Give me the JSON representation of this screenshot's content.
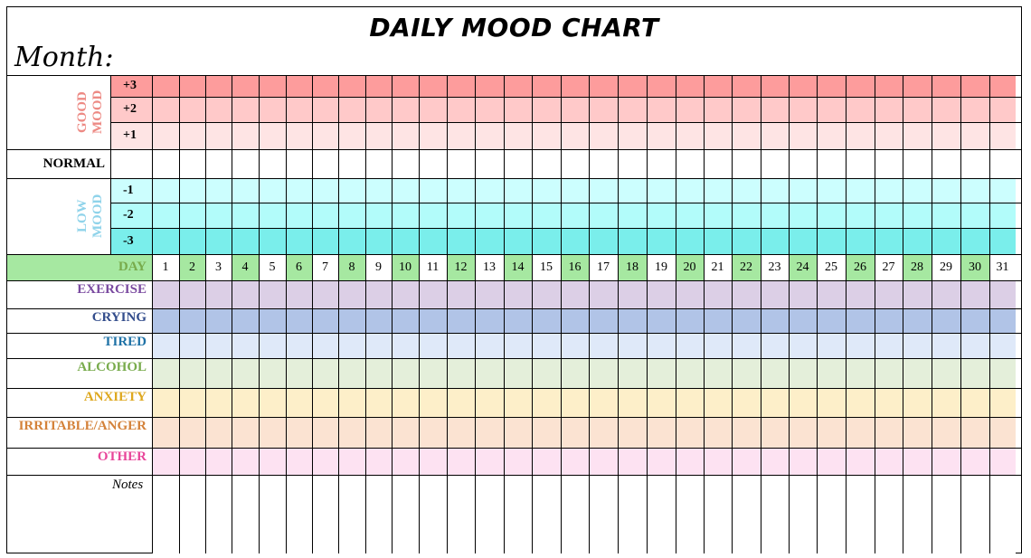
{
  "title": "DAILY MOOD CHART",
  "month_label": "Month:",
  "good_mood_label": "GOOD MOOD",
  "low_mood_label": "LOW MOOD",
  "normal_label": "NORMAL",
  "day_label": "DAY",
  "notes_label": "Notes",
  "mood_levels": [
    {
      "label": "+3",
      "color": "#fd9c9c"
    },
    {
      "label": "+2",
      "color": "#ffc9c9"
    },
    {
      "label": "+1",
      "color": "#fee4e4"
    },
    {
      "label": "",
      "color": "#ffffff"
    },
    {
      "label": "-1",
      "color": "#ccfefe"
    },
    {
      "label": "-2",
      "color": "#b2fcfa"
    },
    {
      "label": "-3",
      "color": "#7aeeeb"
    }
  ],
  "days": [
    "1",
    "2",
    "3",
    "4",
    "5",
    "6",
    "7",
    "8",
    "9",
    "10",
    "11",
    "12",
    "13",
    "14",
    "15",
    "16",
    "17",
    "18",
    "19",
    "20",
    "21",
    "22",
    "23",
    "24",
    "25",
    "26",
    "27",
    "28",
    "29",
    "30",
    "31"
  ],
  "day_colors": {
    "odd": "#ffffff",
    "even": "#a6e8a1",
    "label": "#a6e8a1"
  },
  "trackers": [
    {
      "label": "EXERCISE",
      "text_color": "#7a4aa0",
      "fill": "#dccfe6"
    },
    {
      "label": "CRYING",
      "text_color": "#334d8c",
      "fill": "#b1c4e7"
    },
    {
      "label": "TIRED",
      "text_color": "#1f72a6",
      "fill": "#dfe9f9"
    },
    {
      "label": "ALCOHOL",
      "text_color": "#78ab4c",
      "fill": "#e4efda"
    },
    {
      "label": "ANXIETY",
      "text_color": "#dea81f",
      "fill": "#fdefc9"
    },
    {
      "label": "IRRITABLE/ANGER",
      "text_color": "#d4823a",
      "fill": "#fbe3d2"
    },
    {
      "label": "OTHER",
      "text_color": "#e8469a",
      "fill": "#fde2f2"
    }
  ],
  "colors": {
    "good_mood_text": "#ed8a84",
    "low_mood_text": "#8fd3ea",
    "day_label_text": "#78ab4c"
  }
}
